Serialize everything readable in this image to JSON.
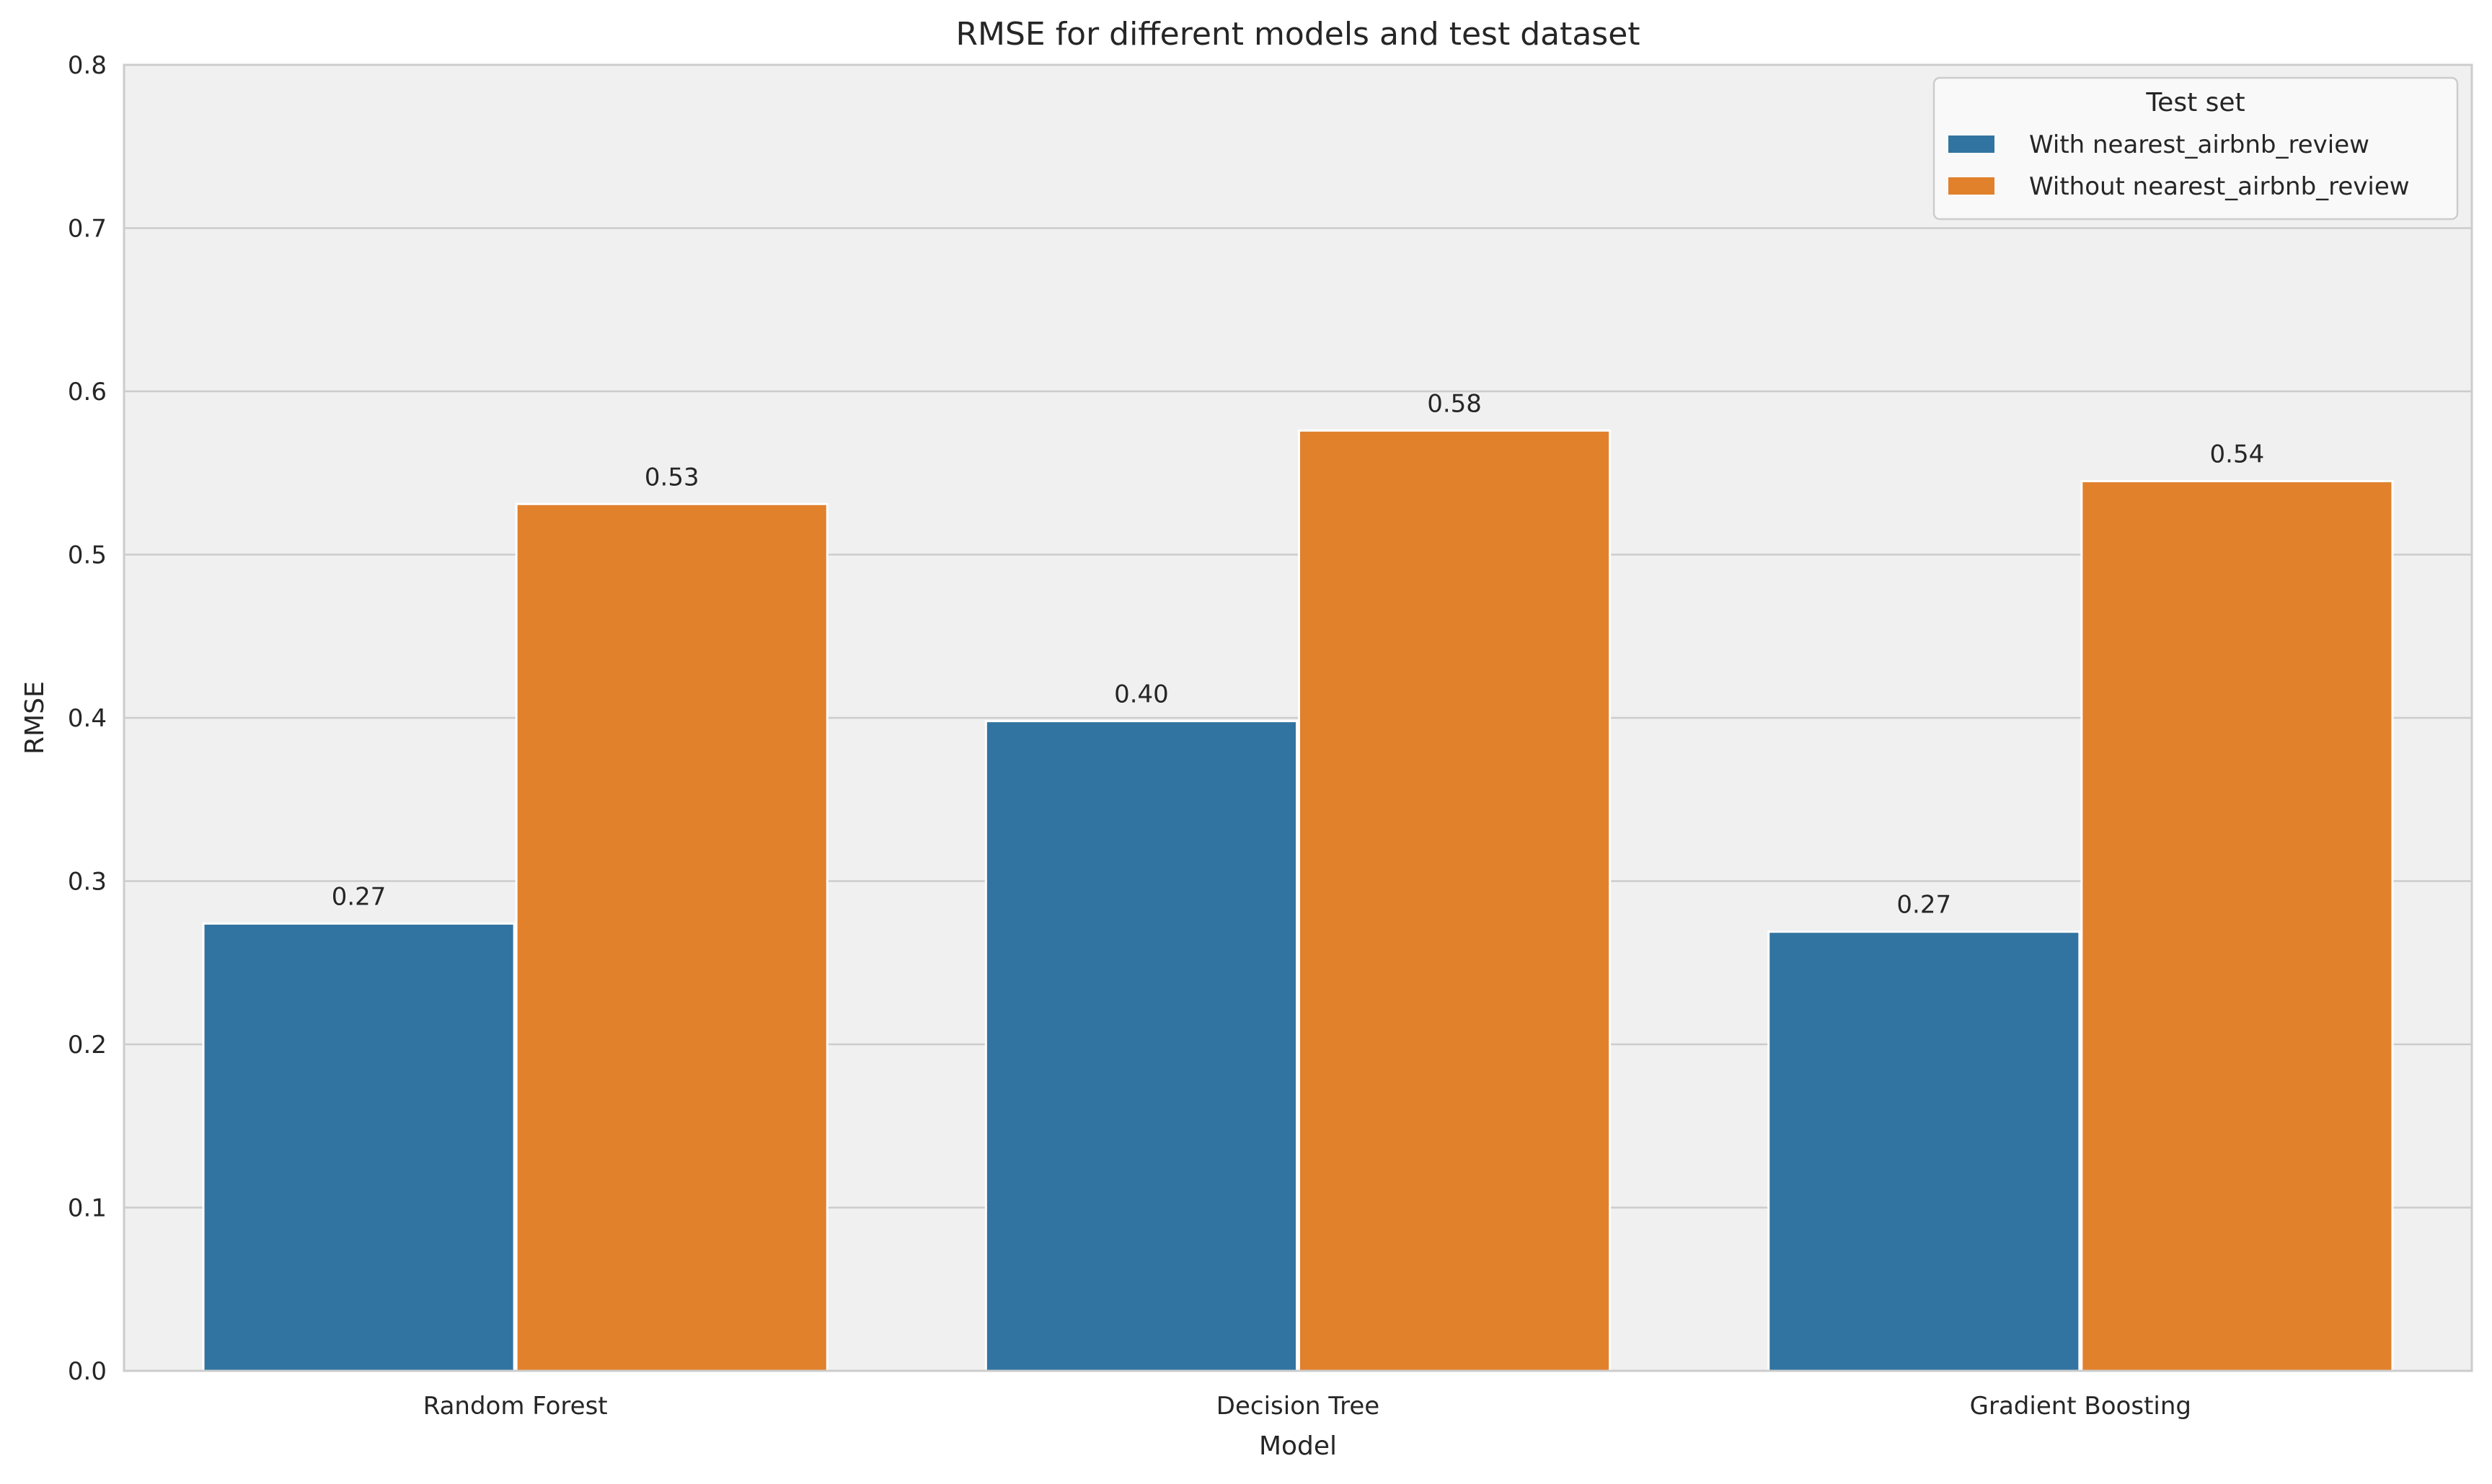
{
  "chart_data": {
    "type": "bar",
    "title": "RMSE for different models and test dataset",
    "xlabel": "Model",
    "ylabel": "RMSE",
    "categories": [
      "Random Forest",
      "Decision Tree",
      "Gradient Boosting"
    ],
    "series": [
      {
        "name": "With nearest_airbnb_review",
        "values": [
          0.274,
          0.398,
          0.269
        ],
        "labels": [
          "0.27",
          "0.40",
          "0.27"
        ],
        "color": "#3274a1"
      },
      {
        "name": "Without nearest_airbnb_review",
        "values": [
          0.531,
          0.576,
          0.545
        ],
        "labels": [
          "0.53",
          "0.58",
          "0.54"
        ],
        "color": "#e1812c"
      }
    ],
    "ylim": [
      0,
      0.8
    ],
    "yticks": [
      "0.0",
      "0.1",
      "0.2",
      "0.3",
      "0.4",
      "0.5",
      "0.6",
      "0.7",
      "0.8"
    ],
    "grid": true,
    "legend": {
      "title": "Test set",
      "position": "top-right"
    },
    "plot_background": "#f0f0f0",
    "grid_color": "#cccccc"
  }
}
